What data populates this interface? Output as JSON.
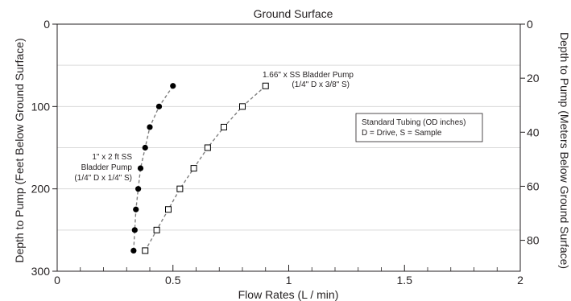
{
  "chart_data": {
    "type": "scatter",
    "title": "Ground Surface",
    "xlabel": "Flow Rates (L / min)",
    "ylabel": "Depth to Pump (Feet  Below Ground Surface)",
    "y2label": "Depth to Pump (Meters Below Ground Surface)",
    "xlim": [
      0,
      2
    ],
    "ylim": [
      0,
      300
    ],
    "y_inverted": true,
    "y2lim": [
      0,
      91.44
    ],
    "grid": "horizontal",
    "xticks": [
      "0",
      "0.5",
      "1",
      "1.5",
      "2"
    ],
    "yticks": [
      "0",
      "100",
      "200",
      "300"
    ],
    "y2ticks": [
      "0",
      "20",
      "40",
      "60",
      "80"
    ],
    "series": [
      {
        "marker": "filled-circle",
        "line": "dashed",
        "x": [
          0.5,
          0.44,
          0.4,
          0.38,
          0.36,
          0.35,
          0.34,
          0.335,
          0.33
        ],
        "y": [
          75,
          100,
          125,
          150,
          175,
          200,
          225,
          250,
          275
        ]
      },
      {
        "marker": "open-square",
        "line": "dashed",
        "x": [
          0.9,
          0.8,
          0.72,
          0.65,
          0.59,
          0.53,
          0.48,
          0.43,
          0.38
        ],
        "y": [
          75,
          100,
          125,
          150,
          175,
          200,
          225,
          250,
          275
        ]
      }
    ],
    "annotations": {
      "small_pump": [
        "1\" x 2 ft SS",
        "Bladder Pump",
        "(1/4\" D x 1/4\" S)"
      ],
      "large_pump": [
        "1.66\" x SS Bladder Pump",
        "(1/4\" D x 3/8\" S)"
      ],
      "legend_box": [
        "Standard Tubing (OD inches)",
        "D = Drive, S = Sample"
      ]
    }
  }
}
